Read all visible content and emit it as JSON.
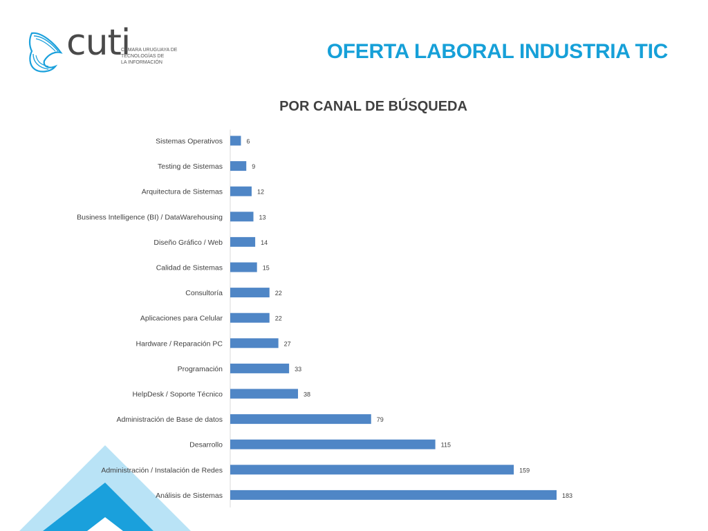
{
  "logo": {
    "wordmark": "cuti",
    "subtitle_lines": [
      "CÁMARA URUGUAYA DE",
      "TECNOLOGÍAS DE",
      "LA INFORMACIÓN"
    ]
  },
  "header": {
    "title": "OFERTA LABORAL INDUSTRIA TIC"
  },
  "colors": {
    "accent": "#16a0d8",
    "bar": "#4f86c6",
    "deco_light": "#b9e3f6",
    "deco_dark": "#1aa0dc"
  },
  "chart_data": {
    "type": "bar",
    "orientation": "horizontal",
    "title": "POR CANAL DE BÚSQUEDA",
    "categories": [
      "Sistemas Operativos",
      "Testing de Sistemas",
      "Arquitectura de Sistemas",
      "Business Intelligence (BI) / DataWarehousing",
      "Diseño Gráfico / Web",
      "Calidad de Sistemas",
      "Consultoría",
      "Aplicaciones para Celular",
      "Hardware / Reparación PC",
      "Programación",
      "HelpDesk / Soporte Técnico",
      "Administración de Base de datos",
      "Desarrollo",
      "Administración / Instalación de Redes",
      "Análisis de Sistemas"
    ],
    "values": [
      6,
      9,
      12,
      13,
      14,
      15,
      22,
      22,
      27,
      33,
      38,
      79,
      115,
      159,
      183
    ],
    "data_labels": true,
    "grid": false,
    "legend": "none"
  }
}
